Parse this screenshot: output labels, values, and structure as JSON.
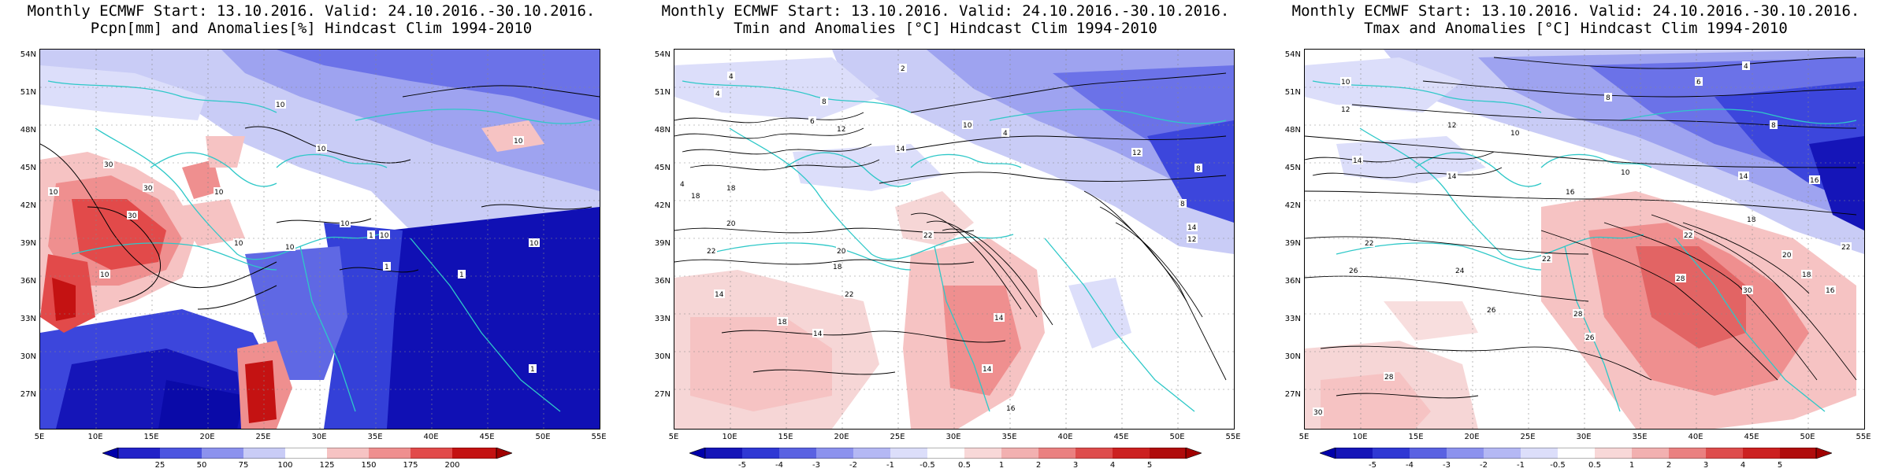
{
  "panels": [
    {
      "title_line1": "Monthly ECMWF Start: 13.10.2016. Valid: 24.10.2016.-30.10.2016.",
      "title_line2": "Pcpn[mm] and Anomalies[%] Hindcast Clim 1994-2010",
      "field": "precipitation",
      "lat_labels": [
        "54N",
        "51N",
        "48N",
        "45N",
        "42N",
        "39N",
        "36N",
        "33N",
        "30N",
        "27N"
      ],
      "lon_labels": [
        "5E",
        "10E",
        "15E",
        "20E",
        "25E",
        "30E",
        "35E",
        "40E",
        "45E",
        "50E",
        "55E"
      ],
      "colorbar_labels": [
        "25",
        "50",
        "75",
        "100",
        "125",
        "150",
        "175",
        "200"
      ],
      "contour_labels": [
        "10",
        "10",
        "10",
        "10",
        "10",
        "10",
        "10",
        "30",
        "30",
        "30",
        "10",
        "10",
        "10",
        "10",
        "10",
        "10",
        "10",
        "10",
        "1",
        "1",
        "1",
        "1"
      ]
    },
    {
      "title_line1": "Monthly ECMWF Start: 13.10.2016. Valid: 24.10.2016.-30.10.2016.",
      "title_line2": "Tmin and Anomalies [°C] Hindcast Clim 1994-2010",
      "field": "tmin",
      "lat_labels": [
        "54N",
        "51N",
        "48N",
        "45N",
        "42N",
        "39N",
        "36N",
        "33N",
        "30N",
        "27N"
      ],
      "lon_labels": [
        "5E",
        "10E",
        "15E",
        "20E",
        "25E",
        "30E",
        "35E",
        "40E",
        "45E",
        "50E",
        "55E"
      ],
      "colorbar_labels": [
        "-5",
        "-4",
        "-3",
        "-2",
        "-1",
        "-0.5",
        "0.5",
        "1",
        "2",
        "3",
        "4",
        "5"
      ],
      "contour_labels": [
        "2",
        "4",
        "4",
        "6",
        "8",
        "10",
        "12",
        "14",
        "4",
        "12",
        "8",
        "6",
        "18",
        "20",
        "22",
        "20",
        "22",
        "18",
        "14",
        "16",
        "14",
        "12",
        "16",
        "18",
        "22",
        "20",
        "12",
        "14",
        "10"
      ]
    },
    {
      "title_line1": "Monthly ECMWF Start: 13.10.2016. Valid: 24.10.2016.-30.10.2016.",
      "title_line2": "Tmax and Anomalies [°C] Hindcast Clim 1994-2010",
      "field": "tmax",
      "lat_labels": [
        "54N",
        "51N",
        "48N",
        "45N",
        "42N",
        "39N",
        "36N",
        "33N",
        "30N",
        "27N"
      ],
      "lon_labels": [
        "5E",
        "10E",
        "15E",
        "20E",
        "25E",
        "30E",
        "35E",
        "40E",
        "45E",
        "50E",
        "55E"
      ],
      "colorbar_labels": [
        "-5",
        "-4",
        "-3",
        "-2",
        "-1",
        "-0.5",
        "0.5",
        "1",
        "2",
        "3",
        "4",
        "5"
      ],
      "contour_labels": [
        "4",
        "6",
        "8",
        "8",
        "10",
        "12",
        "10",
        "14",
        "12",
        "10",
        "14",
        "16",
        "14",
        "16",
        "18",
        "22",
        "22",
        "24",
        "26",
        "22",
        "26",
        "28",
        "30",
        "28",
        "20",
        "18",
        "16",
        "22",
        "30",
        "26",
        "28"
      ]
    }
  ]
}
